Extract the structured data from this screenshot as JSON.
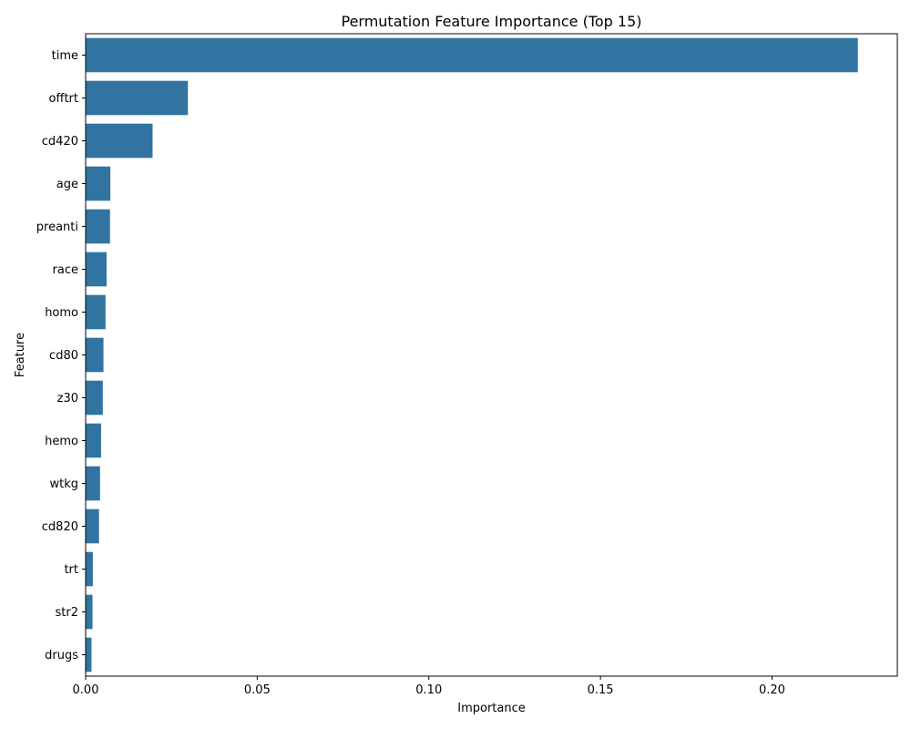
{
  "chart_data": {
    "type": "bar",
    "orientation": "horizontal",
    "title": "Permutation Feature Importance (Top 15)",
    "xlabel": "Importance",
    "ylabel": "Feature",
    "categories": [
      "time",
      "offtrt",
      "cd420",
      "age",
      "preanti",
      "race",
      "homo",
      "cd80",
      "z30",
      "hemo",
      "wtkg",
      "cd820",
      "trt",
      "str2",
      "drugs"
    ],
    "values": [
      0.225,
      0.0298,
      0.0195,
      0.0072,
      0.0071,
      0.0061,
      0.0058,
      0.0052,
      0.005,
      0.0045,
      0.0042,
      0.0039,
      0.0021,
      0.002,
      0.0017
    ],
    "xlim": [
      0,
      0.2365
    ],
    "xticks": [
      0.0,
      0.05,
      0.1,
      0.15,
      0.2
    ],
    "xtick_labels": [
      "0.00",
      "0.05",
      "0.10",
      "0.15",
      "0.20"
    ],
    "bar_color": "#3274a1",
    "grid": false,
    "legend": "none"
  }
}
